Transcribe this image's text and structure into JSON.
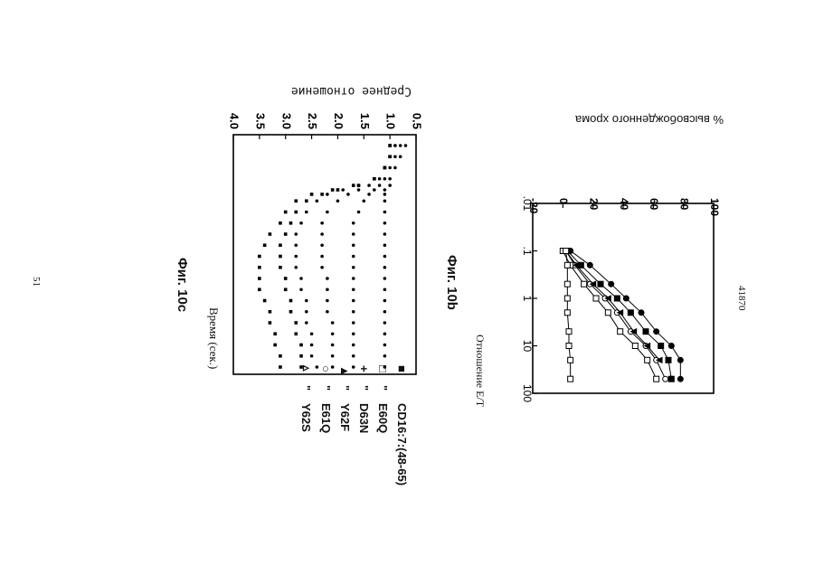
{
  "page": {
    "doc_number": "41870",
    "page_number": "51"
  },
  "chart_data": [
    {
      "id": "fig10b",
      "caption": "Фиг. 10b",
      "type": "line",
      "ylabel": "% высвобожденного хрома",
      "xlabel": "Отношение Е/Т",
      "xscale": "log",
      "xlim": [
        0.01,
        100
      ],
      "ylim": [
        -20,
        100
      ],
      "xticks": [
        ".01",
        ".1",
        "1",
        "10",
        "100"
      ],
      "yticks": [
        "-20",
        "0",
        "20",
        "40",
        "60",
        "80",
        "100"
      ],
      "grid": false,
      "series": [
        {
          "marker": "filled-circle",
          "x": [
            0.1,
            0.2,
            0.5,
            1,
            2,
            5,
            10,
            20,
            50
          ],
          "y": [
            5,
            18,
            32,
            42,
            52,
            62,
            72,
            78,
            78
          ]
        },
        {
          "marker": "filled-square",
          "x": [
            0.1,
            0.2,
            0.5,
            1,
            2,
            5,
            10,
            20,
            50
          ],
          "y": [
            3,
            12,
            25,
            36,
            45,
            55,
            65,
            70,
            72
          ]
        },
        {
          "marker": "open-circle",
          "x": [
            0.1,
            0.2,
            0.5,
            1,
            2,
            5,
            10,
            20,
            50
          ],
          "y": [
            2,
            8,
            18,
            28,
            36,
            45,
            55,
            62,
            68
          ]
        },
        {
          "marker": "open-square",
          "x": [
            0.1,
            0.2,
            0.5,
            1,
            2,
            5,
            10,
            20,
            50
          ],
          "y": [
            0,
            5,
            14,
            22,
            30,
            38,
            48,
            56,
            62
          ]
        },
        {
          "marker": "filled-triangle",
          "x": [
            0.1,
            0.2,
            0.5,
            1,
            2,
            5,
            10,
            20
          ],
          "y": [
            2,
            9,
            20,
            30,
            38,
            47,
            56,
            64
          ]
        },
        {
          "marker": "open-square",
          "x": [
            0.1,
            0.2,
            0.5,
            1,
            2,
            5,
            10,
            20,
            50
          ],
          "y": [
            2,
            3,
            3,
            3,
            3,
            4,
            4,
            5,
            5
          ]
        }
      ]
    },
    {
      "id": "fig10c",
      "caption": "Фиг. 10c",
      "type": "scatter",
      "ylabel": "Среднее отношение",
      "xlabel": "Время (сек.)",
      "ylim": [
        0.5,
        4.0
      ],
      "yticks": [
        "0.5",
        "1.0",
        "1.5",
        "2.0",
        "2.5",
        "3.0",
        "3.5",
        "4.0"
      ],
      "grid": false,
      "legend": {
        "position": "right",
        "entries": [
          {
            "symbol": "■",
            "ditto": "",
            "label": "CD16:7:(48-65)"
          },
          {
            "symbol": "□",
            "ditto": "\"",
            "label": "E60Q"
          },
          {
            "symbol": "+",
            "ditto": "\"",
            "label": "D63N"
          },
          {
            "symbol": "▲",
            "ditto": "\"",
            "label": "Y62F"
          },
          {
            "symbol": "○",
            "ditto": "\"",
            "label": "E61Q"
          },
          {
            "symbol": "▵",
            "ditto": "\"",
            "label": "Y62S"
          }
        ]
      },
      "series": [
        {
          "marker": "filled-square",
          "x": [
            0,
            5,
            10,
            15,
            18,
            20,
            22,
            25,
            30,
            35,
            40,
            45,
            50,
            55,
            60,
            65,
            70,
            75,
            80,
            85,
            90,
            95,
            100
          ],
          "y": [
            1.0,
            1.0,
            1.1,
            1.3,
            1.7,
            2.1,
            2.5,
            2.8,
            3.0,
            3.1,
            3.3,
            3.4,
            3.5,
            3.5,
            3.5,
            3.5,
            3.4,
            3.3,
            3.3,
            3.2,
            3.2,
            3.1,
            3.1
          ]
        },
        {
          "marker": "open-square",
          "x": [
            0,
            5,
            10,
            15,
            18,
            20,
            22,
            25,
            30,
            35,
            40,
            45,
            50,
            55,
            60,
            65,
            70,
            75,
            80,
            85,
            90,
            95,
            100
          ],
          "y": [
            1.0,
            1.0,
            1.1,
            1.3,
            1.6,
            2.0,
            2.3,
            2.6,
            2.8,
            2.9,
            3.0,
            3.1,
            3.1,
            3.1,
            3.0,
            3.0,
            2.9,
            2.9,
            2.8,
            2.8,
            2.7,
            2.7,
            2.7
          ]
        },
        {
          "marker": "plus",
          "x": [
            0,
            5,
            10,
            15,
            18,
            20,
            22,
            25,
            30,
            35,
            40,
            45,
            50,
            55,
            60,
            65,
            70,
            75,
            80,
            85,
            90,
            95,
            100
          ],
          "y": [
            0.9,
            1.0,
            1.1,
            1.3,
            1.6,
            1.9,
            2.2,
            2.4,
            2.6,
            2.7,
            2.8,
            2.8,
            2.8,
            2.8,
            2.7,
            2.7,
            2.6,
            2.6,
            2.6,
            2.5,
            2.5,
            2.5,
            2.4
          ]
        },
        {
          "marker": "filled-triangle",
          "x": [
            0,
            5,
            10,
            15,
            18,
            20,
            22,
            25,
            30,
            35,
            40,
            45,
            50,
            55,
            60,
            65,
            70,
            75,
            80,
            85,
            90,
            95,
            100
          ],
          "y": [
            0.9,
            1.0,
            1.1,
            1.2,
            1.4,
            1.6,
            1.8,
            2.0,
            2.2,
            2.3,
            2.3,
            2.3,
            2.3,
            2.3,
            2.2,
            2.2,
            2.2,
            2.2,
            2.1,
            2.1,
            2.1,
            2.1,
            2.1
          ]
        },
        {
          "marker": "open-circle",
          "x": [
            0,
            5,
            10,
            15,
            18,
            20,
            22,
            25,
            30,
            35,
            40,
            45,
            50,
            55,
            60,
            65,
            70,
            75,
            80,
            85,
            90,
            95,
            100
          ],
          "y": [
            0.8,
            0.9,
            1.0,
            1.1,
            1.2,
            1.3,
            1.4,
            1.5,
            1.6,
            1.7,
            1.7,
            1.7,
            1.7,
            1.7,
            1.7,
            1.7,
            1.7,
            1.7,
            1.7,
            1.7,
            1.7,
            1.7,
            1.7
          ]
        },
        {
          "marker": "open-triangle",
          "x": [
            0,
            5,
            10,
            15,
            18,
            20,
            22,
            25,
            30,
            35,
            40,
            45,
            50,
            55,
            60,
            65,
            70,
            75,
            80,
            85,
            90,
            95,
            100
          ],
          "y": [
            0.7,
            0.8,
            0.9,
            1.0,
            1.0,
            1.1,
            1.1,
            1.1,
            1.1,
            1.1,
            1.1,
            1.1,
            1.1,
            1.1,
            1.1,
            1.1,
            1.1,
            1.1,
            1.1,
            1.1,
            1.1,
            1.1,
            1.1
          ]
        }
      ]
    }
  ]
}
